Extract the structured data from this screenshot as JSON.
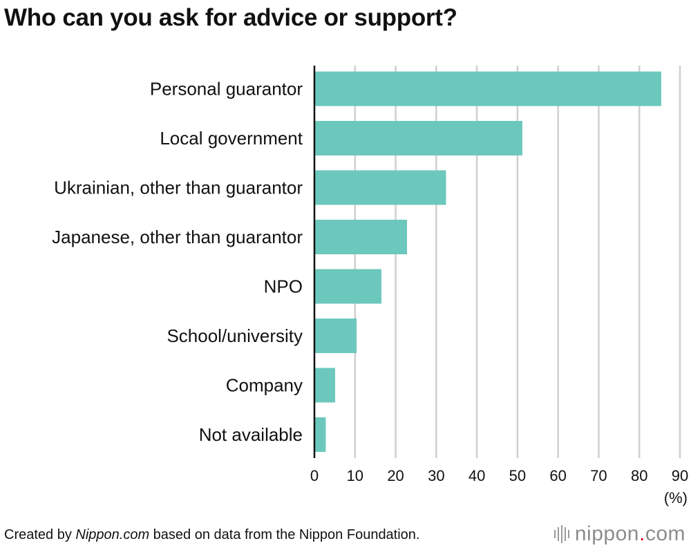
{
  "chart_data": {
    "type": "bar",
    "orientation": "horizontal",
    "title": "Who can you ask for advice or support?",
    "categories": [
      "Personal guarantor",
      "Local government",
      "Ukrainian, other than guarantor",
      "Japanese, other than guarantor",
      "NPO",
      "School/university",
      "Company",
      "Not available"
    ],
    "values": [
      85.4,
      51.2,
      32.4,
      22.8,
      16.5,
      10.4,
      5.1,
      2.8
    ],
    "xlim": [
      0,
      90
    ],
    "xticks": [
      "0",
      "10",
      "20",
      "30",
      "40",
      "50",
      "60",
      "70",
      "80",
      "90"
    ],
    "x_unit": "(%)",
    "grid": true,
    "bar_color": "#6cc8bc"
  },
  "footer": {
    "prefix": "Created by ",
    "site": "Nippon.com",
    "suffix": " based on data from the Nippon Foundation."
  },
  "logo": {
    "text_main": "nippon",
    "text_dot": ".",
    "text_end": "com",
    "accent_color": "#e60012"
  }
}
